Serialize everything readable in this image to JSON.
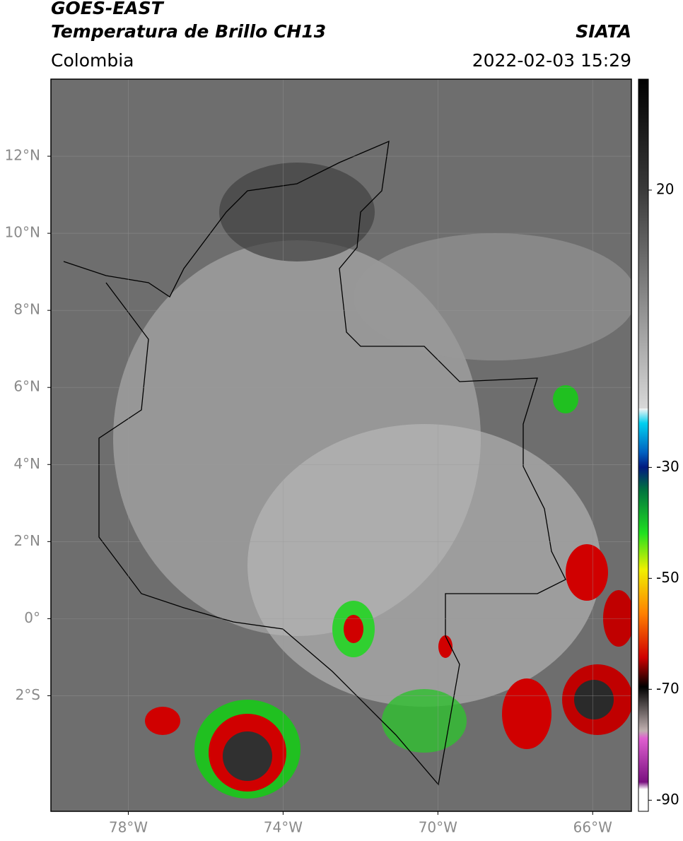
{
  "header": {
    "satellite": "GOES-EAST",
    "product": "Temperatura de Brillo CH13",
    "source": "SIATA",
    "region": "Colombia",
    "datetime": "2022-02-03 15:29"
  },
  "map": {
    "xlim": [
      -80,
      -65
    ],
    "ylim": [
      -5,
      14
    ],
    "xticks": [
      {
        "value": -78,
        "label": "78°W"
      },
      {
        "value": -74,
        "label": "74°W"
      },
      {
        "value": -70,
        "label": "70°W"
      },
      {
        "value": -66,
        "label": "66°W"
      }
    ],
    "yticks": [
      {
        "value": 12,
        "label": "12°N"
      },
      {
        "value": 10,
        "label": "10°N"
      },
      {
        "value": 8,
        "label": "8°N"
      },
      {
        "value": 6,
        "label": "6°N"
      },
      {
        "value": 4,
        "label": "4°N"
      },
      {
        "value": 2,
        "label": "2°N"
      },
      {
        "value": 0,
        "label": "0°"
      },
      {
        "value": -2,
        "label": "2°S"
      }
    ]
  },
  "colorbar": {
    "range": [
      -92,
      40
    ],
    "ticks": [
      20,
      -30,
      -50,
      -70,
      -90
    ]
  }
}
